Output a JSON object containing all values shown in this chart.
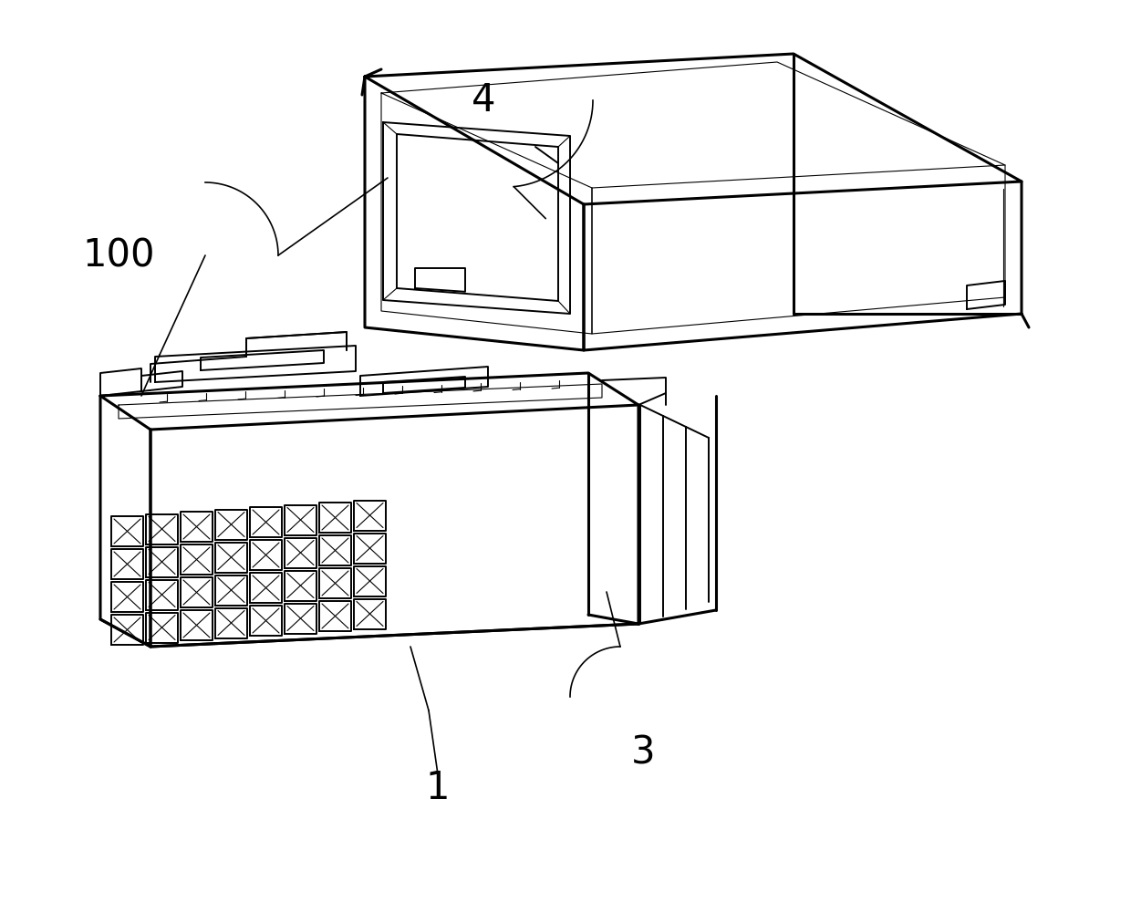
{
  "bg_color": "#ffffff",
  "line_color": "#000000",
  "lw_outer": 2.2,
  "lw_inner": 1.4,
  "lw_thin": 0.8,
  "lw_leader": 1.2,
  "label_4": "4",
  "label_100": "100",
  "label_1": "1",
  "label_3": "3",
  "fig_width": 12.4,
  "fig_height": 9.89,
  "dpi": 100,
  "font_size": 30
}
